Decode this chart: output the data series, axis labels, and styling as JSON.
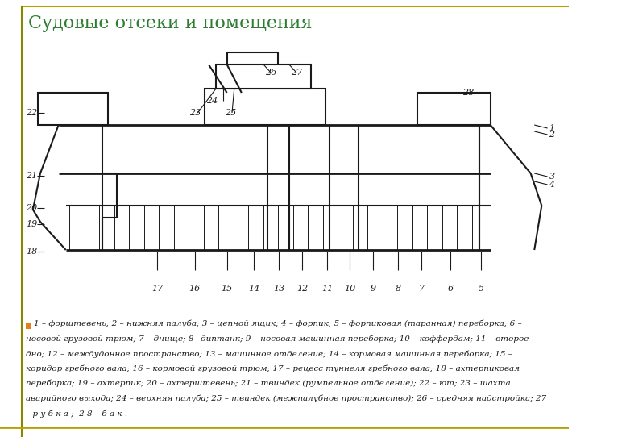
{
  "title": "Судовые отсеки и помещения",
  "title_color": "#2e7d32",
  "title_fontsize": 16,
  "background_color": "#ffffff",
  "line_color": "#1a1a1a",
  "lw": 1.5,
  "caption_line1": "1 – форштевень; 2 – нижняя палуба; 3 – цепной ящик; 4 – форпик; 5 – форпиковая (таранная) переборка; 6 –",
  "caption_line2": "носовой грузовой трюм; 7 – днище; 8– диптанк; 9 – носовая машинная переборка; 10 – коффердам; 11 – второе",
  "caption_line3": "дно; 12 – междудонное пространство; 13 – машинное отделение; 14 – кормовая машинная переборка; 15 –",
  "caption_line4": "коридор гребного вала; 16 – кормовой грузовой трюм; 17 – рецесс туннеля гребного вала; 18 – ахтерпиковая",
  "caption_line5": "переборка; 19 – ахтерпик; 20 – ахтерштевень; 21 – твиндек (румпельное отделение); 22 – ют; 23 – шахта",
  "caption_line6": "аварийного выхода; 24 – верхняя палуба; 25 – твиндек (межпалубное пространство); 26 – средняя надстройка; 27",
  "caption_line7": "– р у б к а ;  2 8 – б а к ."
}
